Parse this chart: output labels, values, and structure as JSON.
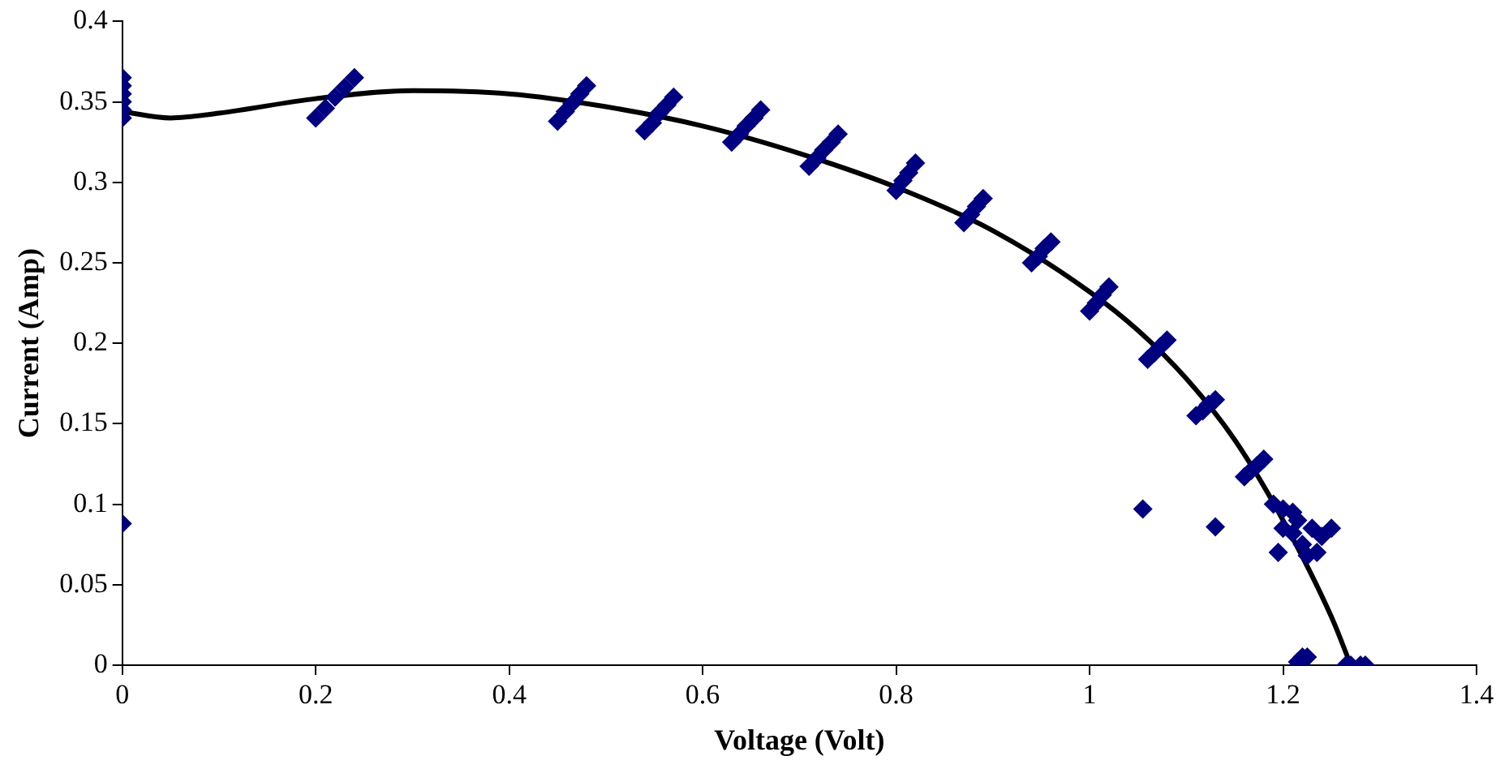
{
  "chart_data": {
    "type": "scatter",
    "xlabel": "Voltage (Volt)",
    "ylabel": "Current (Amp)",
    "xlim": [
      0,
      1.4
    ],
    "xticks": [
      0,
      0.2,
      0.4,
      0.6,
      0.8,
      1,
      1.2,
      1.4
    ],
    "ylim": [
      0,
      0.4
    ],
    "yticks": [
      0,
      0.05,
      0.1,
      0.15,
      0.2,
      0.25,
      0.3,
      0.35,
      0.4
    ],
    "grid": false,
    "legend": false,
    "marker": "diamond",
    "series": [
      {
        "color": "#000080",
        "x": [
          0,
          0,
          0,
          0,
          0,
          0,
          0,
          0.2,
          0.21,
          0.22,
          0.23,
          0.24,
          0.45,
          0.458,
          0.465,
          0.473,
          0.48,
          0.54,
          0.548,
          0.555,
          0.563,
          0.57,
          0.63,
          0.638,
          0.645,
          0.653,
          0.66,
          0.71,
          0.718,
          0.725,
          0.733,
          0.74,
          0.8,
          0.807,
          0.813,
          0.82,
          0.87,
          0.877,
          0.883,
          0.89,
          0.94,
          0.947,
          0.953,
          0.96,
          1.0,
          1.007,
          1.013,
          1.02,
          1.06,
          1.067,
          1.073,
          1.08,
          1.11,
          1.117,
          1.123,
          1.13,
          1.16,
          1.167,
          1.173,
          1.18,
          1.055,
          1.13,
          1.19,
          1.2,
          1.21,
          1.215,
          1.2,
          1.21,
          1.23,
          1.25,
          1.24,
          1.235,
          1.225,
          1.195,
          1.22,
          1.215,
          1.22,
          1.225,
          1.265,
          1.27,
          1.28,
          1.285
        ],
        "values": [
          0.34,
          0.345,
          0.35,
          0.355,
          0.36,
          0.365,
          0.088,
          0.34,
          0.346,
          0.353,
          0.359,
          0.365,
          0.338,
          0.344,
          0.349,
          0.355,
          0.36,
          0.332,
          0.337,
          0.343,
          0.348,
          0.353,
          0.325,
          0.33,
          0.335,
          0.34,
          0.345,
          0.31,
          0.315,
          0.32,
          0.325,
          0.33,
          0.295,
          0.301,
          0.306,
          0.312,
          0.275,
          0.28,
          0.285,
          0.29,
          0.25,
          0.254,
          0.259,
          0.263,
          0.22,
          0.225,
          0.23,
          0.235,
          0.19,
          0.194,
          0.198,
          0.202,
          0.155,
          0.158,
          0.162,
          0.165,
          0.117,
          0.121,
          0.124,
          0.128,
          0.097,
          0.086,
          0.1,
          0.097,
          0.095,
          0.09,
          0.085,
          0.082,
          0.085,
          0.085,
          0.08,
          0.07,
          0.068,
          0.07,
          0.075,
          0.002,
          0.005,
          0.005,
          0,
          0,
          0,
          0
        ]
      },
      {
        "type": "line",
        "color": "#000000",
        "marker": "none",
        "line_style": "solid",
        "x": [
          0,
          0.05,
          0.1,
          0.2,
          0.3,
          0.4,
          0.5,
          0.6,
          0.7,
          0.8,
          0.9,
          1.0,
          1.05,
          1.1,
          1.15,
          1.2,
          1.25,
          1.27
        ],
        "values": [
          0.344,
          0.34,
          0.343,
          0.352,
          0.357,
          0.355,
          0.347,
          0.335,
          0.318,
          0.297,
          0.27,
          0.232,
          0.208,
          0.178,
          0.14,
          0.09,
          0.03,
          0
        ]
      }
    ]
  }
}
